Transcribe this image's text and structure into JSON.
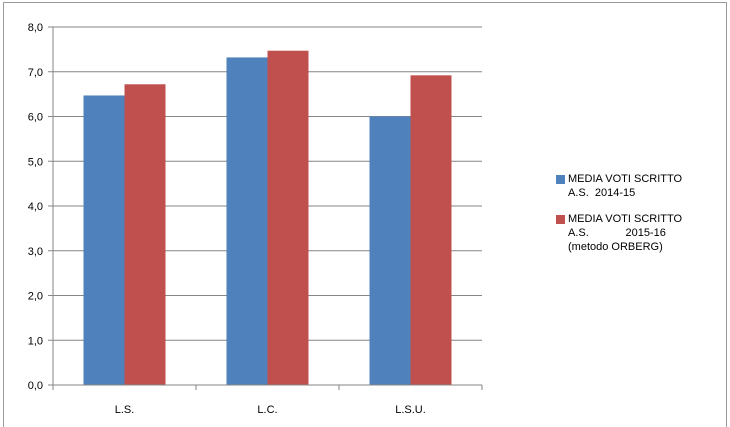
{
  "chart_data": {
    "type": "bar",
    "categories": [
      "L.S.",
      "L.C.",
      "L.S.U."
    ],
    "series": [
      {
        "name": "MEDIA VOTI SCRITTO\nA.S.  2014-15",
        "color": "#4f81bd",
        "values": [
          6.47,
          7.32,
          6.0
        ]
      },
      {
        "name": "MEDIA VOTI SCRITTO\nA.S.            2015-16\n(metodo ORBERG)",
        "color": "#c0504d",
        "values": [
          6.72,
          7.47,
          6.92
        ]
      }
    ],
    "ylim": [
      0,
      8
    ],
    "yticks": [
      "0,0",
      "1,0",
      "2,0",
      "3,0",
      "4,0",
      "5,0",
      "6,0",
      "7,0",
      "8,0"
    ],
    "grid": true,
    "legend_position": "right"
  }
}
